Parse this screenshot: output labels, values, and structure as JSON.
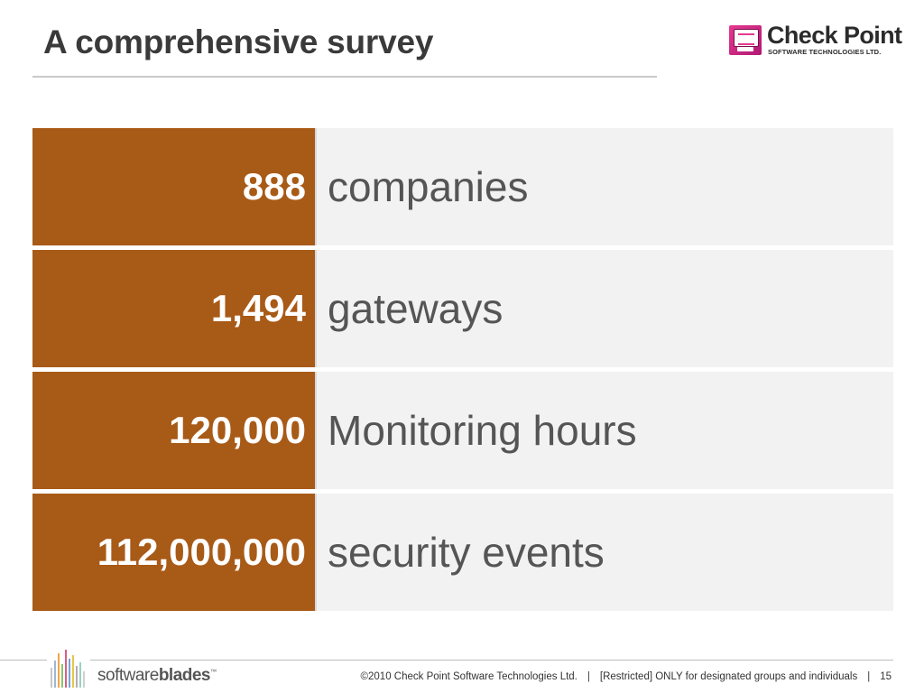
{
  "slide": {
    "title": "A comprehensive survey"
  },
  "logo": {
    "name": "Check Point",
    "tagline": "SOFTWARE TECHNOLOGIES LTD."
  },
  "stats": [
    {
      "value": "888",
      "label": "companies"
    },
    {
      "value": "1,494",
      "label": "gateways"
    },
    {
      "value": "120,000",
      "label": "Monitoring hours"
    },
    {
      "value": "112,000,000",
      "label": "security events"
    }
  ],
  "footer": {
    "brand_light": "software",
    "brand_bold": "blades",
    "brand_tm": "™",
    "copyright": "©2010 Check Point Software Technologies Ltd.",
    "separator": "|",
    "classification": "[Restricted] ONLY for designated groups and individuals",
    "page_number": "15"
  },
  "colors": {
    "stat_value_bg": "#a85a17",
    "stat_label_bg": "#f2f2f2",
    "title_text": "#3a3a3a"
  }
}
